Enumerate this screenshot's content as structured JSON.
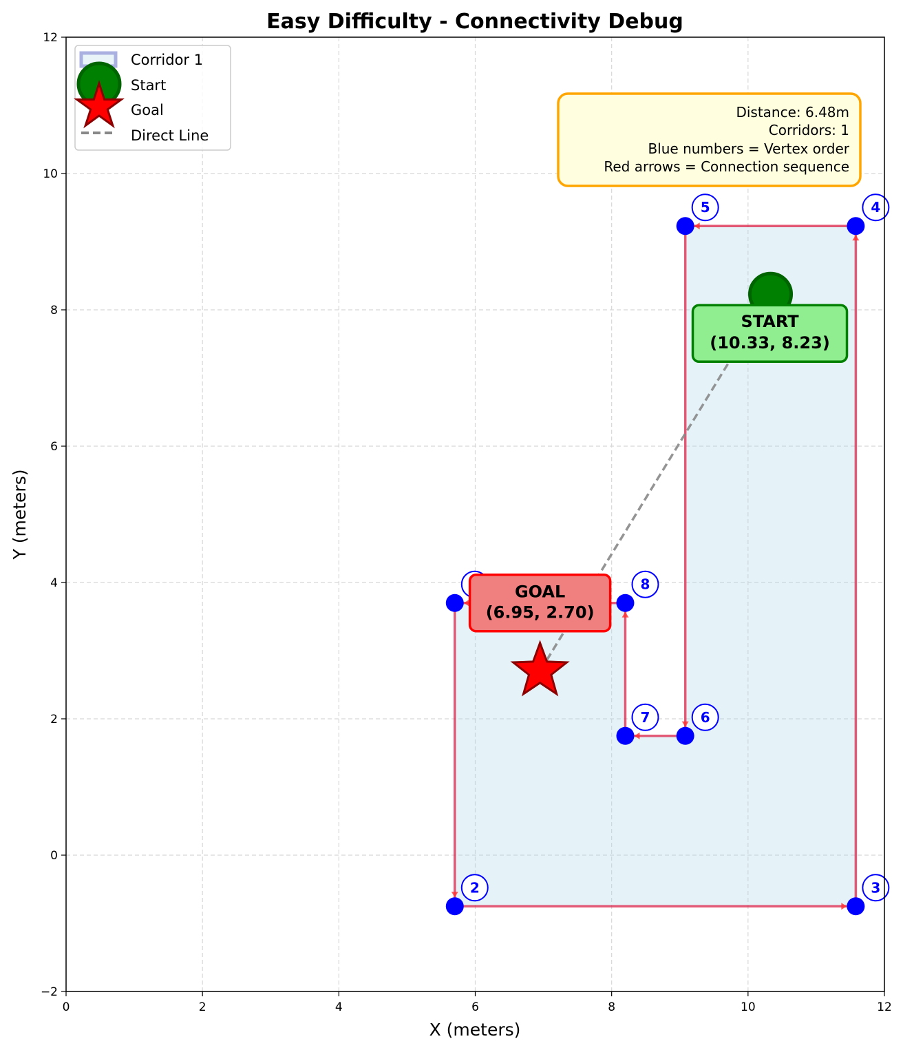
{
  "chart_data": {
    "type": "line",
    "title": "Easy Difficulty - Connectivity Debug",
    "xlabel": "X (meters)",
    "ylabel": "Y (meters)",
    "xlim": [
      0,
      12
    ],
    "ylim": [
      -2,
      12
    ],
    "xticks": [
      0,
      2,
      4,
      6,
      8,
      10,
      12
    ],
    "yticks": [
      -2,
      0,
      2,
      4,
      6,
      8,
      10,
      12
    ],
    "grid": true,
    "legend_position": "top-left",
    "legend": [
      {
        "label": "Corridor 1",
        "marker": "square-outline"
      },
      {
        "label": "Start",
        "marker": "circle"
      },
      {
        "label": "Goal",
        "marker": "star"
      },
      {
        "label": "Direct Line",
        "marker": "dashed-line"
      }
    ],
    "corridor": {
      "name": "Corridor 1",
      "fill_color": "#add8e6",
      "edge_color": "#dc143c",
      "vertices": [
        {
          "n": 1,
          "x": 5.7,
          "y": 3.7
        },
        {
          "n": 2,
          "x": 5.7,
          "y": -0.75
        },
        {
          "n": 3,
          "x": 11.58,
          "y": -0.75
        },
        {
          "n": 4,
          "x": 11.58,
          "y": 9.23
        },
        {
          "n": 5,
          "x": 9.08,
          "y": 9.23
        },
        {
          "n": 6,
          "x": 9.08,
          "y": 1.75
        },
        {
          "n": 7,
          "x": 8.2,
          "y": 1.75
        },
        {
          "n": 8,
          "x": 8.2,
          "y": 3.7
        }
      ]
    },
    "start": {
      "x": 10.33,
      "y": 8.23,
      "label": "START",
      "coords": "(10.33, 8.23)"
    },
    "goal": {
      "x": 6.95,
      "y": 2.7,
      "label": "GOAL",
      "coords": "(6.95, 2.70)"
    },
    "info_box": [
      "Distance: 6.48m",
      "Corridors: 1",
      "Blue numbers = Vertex order",
      "Red arrows = Connection sequence"
    ]
  }
}
